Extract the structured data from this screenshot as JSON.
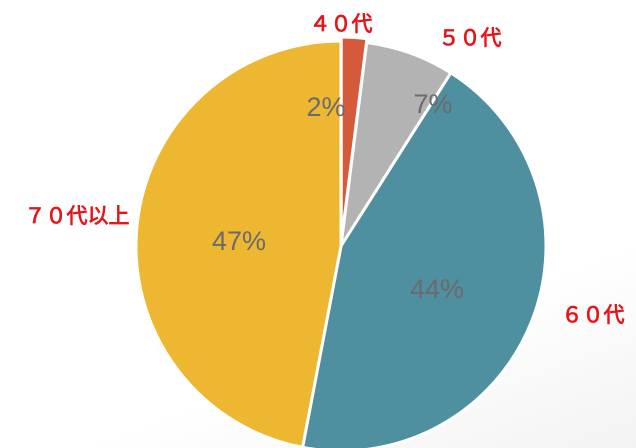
{
  "chart_data": {
    "type": "pie",
    "start": "12 o'clock",
    "direction": "clockwise",
    "title": "",
    "slices": [
      {
        "category": "４０代",
        "value": 2,
        "label": "2%",
        "color": "#d55a3c"
      },
      {
        "category": "５０代",
        "value": 7,
        "label": "7%",
        "color": "#b3b3b3"
      },
      {
        "category": "６０代",
        "value": 44,
        "label": "44%",
        "color": "#4e8fa0"
      },
      {
        "category": "７０代以上",
        "value": 47,
        "label": "47%",
        "color": "#edb732"
      }
    ],
    "slice_border_color": "#ffffff",
    "percent_label_color": "#6b6b6b",
    "category_label_color": "#e8141b"
  }
}
